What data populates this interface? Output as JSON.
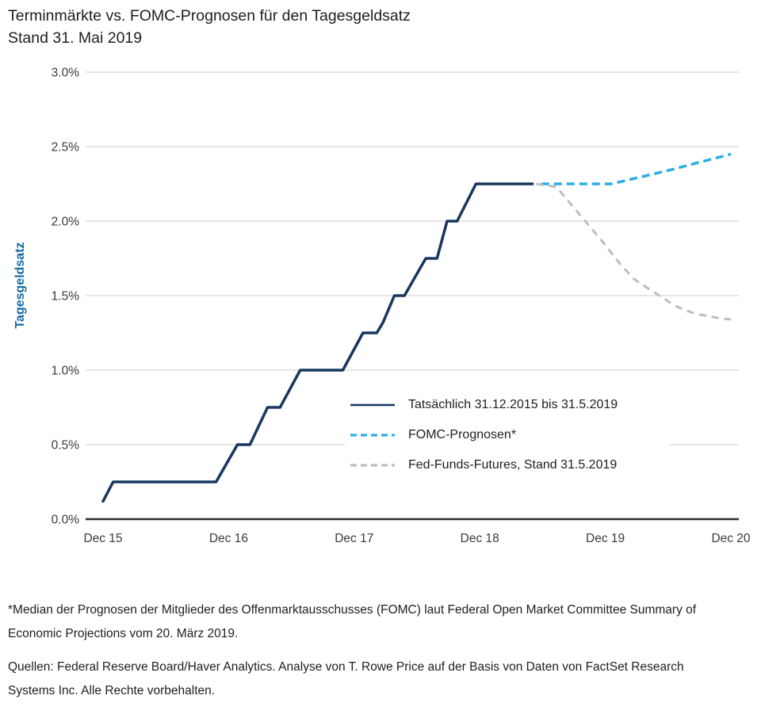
{
  "title": {
    "line1": "Terminmärkte vs. FOMC-Prognosen für den Tagesgeldsatz",
    "line2": "Stand 31. Mai 2019"
  },
  "colors": {
    "actual_navy": "#17375e",
    "fomc_cyan": "#2aaee6",
    "futures_gray": "#bdbdbd",
    "gridline": "#cccccc",
    "axis": "#2b2b2b",
    "tick_text": "#3a3a3a",
    "ylabel_blue": "#1269a4",
    "body_text": "#1e1e1e"
  },
  "chart_data": {
    "type": "line",
    "title": "Terminmärkte vs. FOMC-Prognosen für den Tagesgeldsatz",
    "subtitle": "Stand 31. Mai 2019",
    "xlabel": "",
    "ylabel": "Tagesgeldsatz",
    "x_ticks": [
      "Dec 15",
      "Dec 16",
      "Dec 17",
      "Dec 18",
      "Dec 19",
      "Dec 20"
    ],
    "y_ticks": [
      "0.0%",
      "0.5%",
      "1.0%",
      "1.5%",
      "2.0%",
      "2.5%",
      "3.0%"
    ],
    "xlim_years_after_dec2015": [
      0,
      5
    ],
    "ylim_percent": [
      0,
      3
    ],
    "grid": "horizontal",
    "legend_position": "inside-lower-right",
    "series": [
      {
        "id": "actual",
        "name": "Tatsächlich 31.12.2015 bis 31.5.2019",
        "color": "#17375e",
        "style": "solid",
        "points": [
          [
            0,
            0.12
          ],
          [
            0.08,
            0.25
          ],
          [
            0.9,
            0.25
          ],
          [
            1.07,
            0.5
          ],
          [
            1.17,
            0.5
          ],
          [
            1.31,
            0.75
          ],
          [
            1.41,
            0.75
          ],
          [
            1.57,
            1.0
          ],
          [
            1.91,
            1.0
          ],
          [
            2.07,
            1.25
          ],
          [
            2.18,
            1.25
          ],
          [
            2.23,
            1.32
          ],
          [
            2.32,
            1.5
          ],
          [
            2.4,
            1.5
          ],
          [
            2.57,
            1.75
          ],
          [
            2.66,
            1.75
          ],
          [
            2.74,
            2.0
          ],
          [
            2.82,
            2.0
          ],
          [
            2.97,
            2.25
          ],
          [
            3.42,
            2.25
          ]
        ]
      },
      {
        "id": "fomc-forecast",
        "name": "FOMC-Prognosen*",
        "color": "#2aaee6",
        "style": "dashed",
        "points": [
          [
            3.49,
            2.25
          ],
          [
            4.05,
            2.25
          ],
          [
            4.5,
            2.34
          ],
          [
            5.0,
            2.45
          ]
        ]
      },
      {
        "id": "fed-funds-futures",
        "name": "Fed-Funds-Futures, Stand 31.5.2019",
        "color": "#bdbdbd",
        "style": "dashed",
        "points": [
          [
            3.45,
            2.25
          ],
          [
            3.61,
            2.23
          ],
          [
            3.84,
            2.0
          ],
          [
            3.99,
            1.85
          ],
          [
            4.12,
            1.71
          ],
          [
            4.23,
            1.61
          ],
          [
            4.43,
            1.5
          ],
          [
            4.56,
            1.43
          ],
          [
            4.71,
            1.38
          ],
          [
            4.9,
            1.35
          ],
          [
            5.0,
            1.34
          ]
        ]
      }
    ]
  },
  "footnotes": {
    "note1": "*Median der Prognosen der Mitglieder des Offenmarktausschusses (FOMC) laut Federal Open Market Committee Summary of Economic Projections vom 20. März 2019.",
    "note2": "Quellen: Federal Reserve Board/Haver Analytics. Analyse von T. Rowe Price auf der Basis von Daten von FactSet Research Systems Inc. Alle Rechte vorbehalten."
  }
}
